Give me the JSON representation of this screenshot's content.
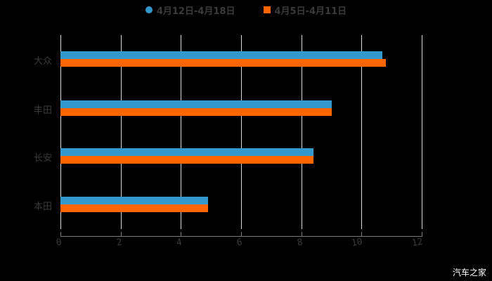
{
  "chart_data": {
    "type": "bar",
    "orientation": "horizontal",
    "title": "",
    "categories": [
      "大众",
      "丰田",
      "长安",
      "本田"
    ],
    "series": [
      {
        "name": "4月12日-4月18日",
        "color": "#3399cc",
        "values": [
          10.7,
          9.0,
          8.4,
          4.9
        ]
      },
      {
        "name": "4月5日-4月11日",
        "color": "#ff6600",
        "values": [
          10.8,
          9.0,
          8.4,
          4.9
        ]
      }
    ],
    "xlabel": "",
    "ylabel": "",
    "xlim": [
      0,
      12
    ],
    "xticks": [
      "0",
      "2",
      "4",
      "6",
      "8",
      "10",
      "12"
    ],
    "grid": true,
    "legend_position": "top"
  },
  "legend": {
    "items": [
      {
        "label": "4月12日-4月18日",
        "color": "#3399cc"
      },
      {
        "label": "4月5日-4月11日",
        "color": "#ff6600"
      }
    ]
  },
  "watermark": "汽车之家"
}
